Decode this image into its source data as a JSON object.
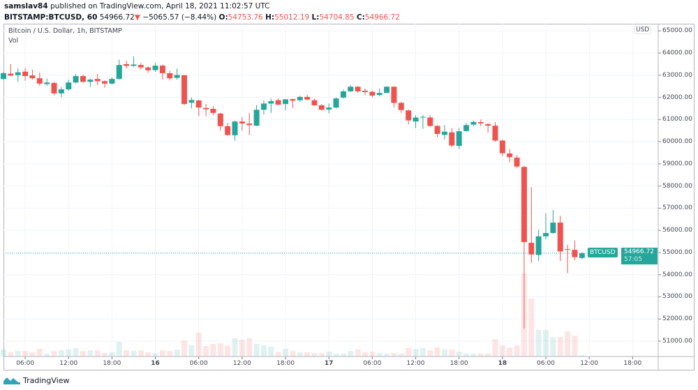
{
  "header": {
    "author": "samslav84",
    "published_text": "published on TradingView.com, April 18, 2021 11:02:57 UTC",
    "symbol": "BITSTAMP:BTCUSD, 60",
    "last": "54966.72",
    "change_arrow": "▼",
    "change": "−5065.57 (−8.44%)",
    "o_label": "O:",
    "o": "54753.76",
    "h_label": "H:",
    "h": "55012.19",
    "l_label": "L:",
    "l": "54704.85",
    "c_label": "C:",
    "c": "54966.72"
  },
  "legend": {
    "title": "Bitcoin / U.S. Dollar, 1h, BITSTAMP",
    "volume": "Vol"
  },
  "price_axis": {
    "currency": "USD",
    "labels": [
      "65000.00",
      "64000.00",
      "63000.00",
      "62000.00",
      "61000.00",
      "60000.00",
      "59000.00",
      "58000.00",
      "57000.00",
      "56000.00",
      "55000.00",
      "54000.00",
      "53000.00",
      "52000.00",
      "51000.00"
    ]
  },
  "time_axis": {
    "labels": [
      "06:00",
      "12:00",
      "18:00",
      "16",
      "06:00",
      "12:00",
      "18:00",
      "17",
      "06:00",
      "12:00",
      "18:00",
      "18",
      "06:00",
      "12:00",
      "18:00"
    ]
  },
  "price_tag": {
    "symbol": "BTCUSD",
    "price": "54966.72",
    "countdown": "57:05"
  },
  "colors": {
    "up": "#26a69a",
    "down": "#ef5350",
    "grid": "#f0f3fa"
  },
  "footer": {
    "brand": "TradingView"
  },
  "chart_data": {
    "type": "candlestick",
    "interval": "1h",
    "ylim": [
      50300,
      65300
    ],
    "grid": true,
    "current_price": 54966.72,
    "fields": [
      "open",
      "high",
      "low",
      "close",
      "volume_relative"
    ],
    "candles": [
      [
        62830,
        63150,
        62800,
        63090,
        10
      ],
      [
        63070,
        63500,
        62960,
        62980,
        6
      ],
      [
        63000,
        63300,
        62700,
        63130,
        8
      ],
      [
        63160,
        63330,
        62750,
        62960,
        8
      ],
      [
        62990,
        63250,
        62800,
        62860,
        6
      ],
      [
        62860,
        63120,
        62520,
        62620,
        11
      ],
      [
        62600,
        62850,
        62520,
        62670,
        4
      ],
      [
        62650,
        62700,
        62100,
        62180,
        8
      ],
      [
        62180,
        62460,
        62000,
        62360,
        9
      ],
      [
        62360,
        62800,
        62300,
        62670,
        10
      ],
      [
        62670,
        63050,
        62620,
        62960,
        12
      ],
      [
        62960,
        63020,
        62650,
        62700,
        8
      ],
      [
        62700,
        62850,
        62470,
        62800,
        9
      ],
      [
        62830,
        63050,
        62550,
        62730,
        9
      ],
      [
        62730,
        62770,
        62440,
        62620,
        5
      ],
      [
        62620,
        62900,
        62580,
        62830,
        6
      ],
      [
        62830,
        63700,
        62800,
        63460,
        21
      ],
      [
        63500,
        63650,
        63300,
        63420,
        9
      ],
      [
        63420,
        63850,
        63380,
        63480,
        8
      ],
      [
        63460,
        63550,
        63250,
        63350,
        9
      ],
      [
        63350,
        63400,
        63100,
        63220,
        6
      ],
      [
        63230,
        63550,
        63150,
        63430,
        5
      ],
      [
        63430,
        63480,
        62800,
        63090,
        9
      ],
      [
        63090,
        63200,
        62760,
        62860,
        8
      ],
      [
        62880,
        63300,
        62800,
        63010,
        10
      ],
      [
        63000,
        63000,
        61650,
        61700,
        23
      ],
      [
        61760,
        62000,
        61500,
        61880,
        16
      ],
      [
        61860,
        61900,
        61150,
        61540,
        34
      ],
      [
        61520,
        61700,
        61150,
        61460,
        15
      ],
      [
        61480,
        61600,
        61200,
        61300,
        18
      ],
      [
        61270,
        61300,
        60500,
        60700,
        19
      ],
      [
        60700,
        60850,
        60280,
        60300,
        16
      ],
      [
        60290,
        60950,
        60050,
        60910,
        26
      ],
      [
        60910,
        61100,
        60500,
        60820,
        24
      ],
      [
        60820,
        61300,
        60300,
        60750,
        26
      ],
      [
        60720,
        61650,
        60700,
        61440,
        18
      ],
      [
        61440,
        61870,
        61220,
        61720,
        16
      ],
      [
        61720,
        61950,
        61300,
        61830,
        14
      ],
      [
        61870,
        61950,
        61650,
        61670,
        6
      ],
      [
        61700,
        61920,
        61420,
        61910,
        11
      ],
      [
        61920,
        61950,
        61520,
        61850,
        8
      ],
      [
        61870,
        62080,
        61800,
        62020,
        6
      ],
      [
        62020,
        62120,
        61870,
        61900,
        6
      ],
      [
        61870,
        61950,
        61600,
        61640,
        5
      ],
      [
        61640,
        61700,
        61400,
        61440,
        5
      ],
      [
        61450,
        61720,
        61280,
        61540,
        7
      ],
      [
        61540,
        62000,
        61500,
        61950,
        4
      ],
      [
        61990,
        62350,
        61950,
        62270,
        4
      ],
      [
        62270,
        62550,
        62250,
        62480,
        8
      ],
      [
        62480,
        62500,
        62200,
        62270,
        10
      ],
      [
        62300,
        62400,
        62100,
        62240,
        6
      ],
      [
        62250,
        62300,
        62000,
        62080,
        7
      ],
      [
        62110,
        62400,
        62050,
        62200,
        5
      ],
      [
        62200,
        62500,
        62180,
        62480,
        4
      ],
      [
        62480,
        62500,
        61550,
        61750,
        5
      ],
      [
        61750,
        61800,
        61300,
        61430,
        4
      ],
      [
        61410,
        61450,
        60780,
        60960,
        12
      ],
      [
        60910,
        61200,
        60620,
        61090,
        11
      ],
      [
        61100,
        61200,
        60580,
        61120,
        12
      ],
      [
        61090,
        61200,
        60660,
        60710,
        9
      ],
      [
        60710,
        60750,
        60200,
        60350,
        13
      ],
      [
        60310,
        60750,
        60100,
        60450,
        10
      ],
      [
        60420,
        60620,
        59750,
        59830,
        10
      ],
      [
        59810,
        60620,
        59670,
        60470,
        7
      ],
      [
        60480,
        60850,
        60450,
        60750,
        4
      ],
      [
        60770,
        60950,
        60700,
        60890,
        4
      ],
      [
        60880,
        61000,
        60700,
        60820,
        4
      ],
      [
        60790,
        60850,
        60400,
        60720,
        4
      ],
      [
        60720,
        60880,
        60000,
        60050,
        25
      ],
      [
        60050,
        60100,
        59350,
        59480,
        16
      ],
      [
        59470,
        59670,
        59070,
        59300,
        13
      ],
      [
        59280,
        59400,
        58800,
        58880,
        16
      ],
      [
        58860,
        58920,
        51560,
        55470,
        119
      ],
      [
        55440,
        57950,
        54530,
        54910,
        83
      ],
      [
        54890,
        56030,
        54620,
        55730,
        38
      ],
      [
        55730,
        56770,
        55600,
        55880,
        38
      ],
      [
        55880,
        56920,
        55850,
        56350,
        28
      ],
      [
        56350,
        56660,
        54620,
        55050,
        28
      ],
      [
        55150,
        55350,
        54070,
        55120,
        36
      ],
      [
        55120,
        55540,
        54650,
        54790,
        30
      ],
      [
        54753.76,
        55012.19,
        54704.85,
        54966.72,
        2
      ]
    ]
  }
}
